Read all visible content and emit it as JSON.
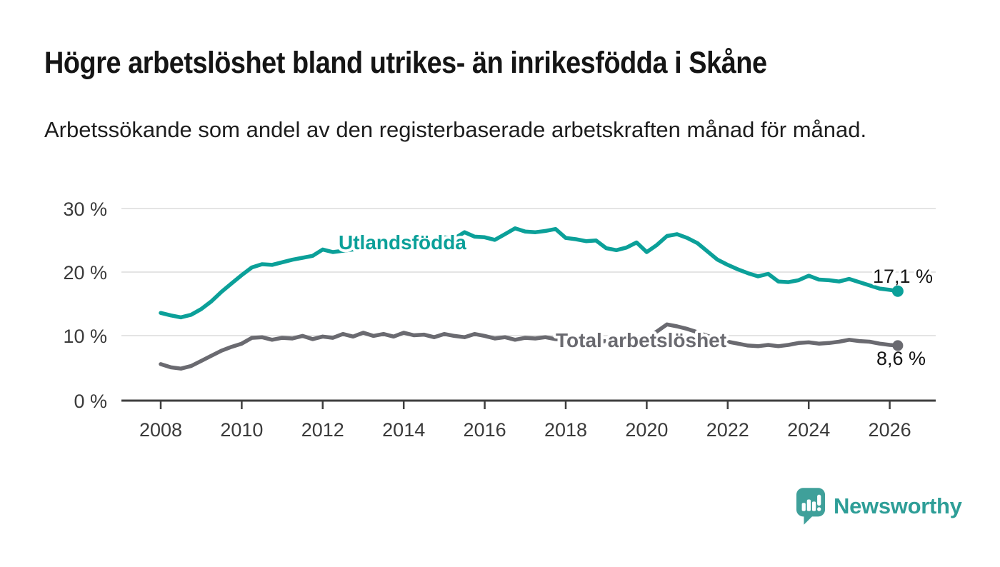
{
  "header": {
    "title": "Högre arbetslöshet bland utrikes- än inrikesfödda i Skåne",
    "subtitle": "Arbetssökande som andel av den registerbaserade arbetskraften månad för månad."
  },
  "chart_data": {
    "type": "line",
    "title": "Högre arbetslöshet bland utrikes- än inrikesfödda i Skåne",
    "subtitle": "Arbetssökande som andel av den registerbaserade arbetskraften månad för månad.",
    "xlabel": "",
    "ylabel": "",
    "xlim": [
      2007.0,
      2027.1
    ],
    "ylim": [
      0,
      31
    ],
    "grid": "horizontal",
    "x_ticks": [
      "2008",
      "2010",
      "2012",
      "2014",
      "2016",
      "2018",
      "2020",
      "2022",
      "2024",
      "2026"
    ],
    "y_ticks": [
      "30 %",
      "20 %",
      "10 %",
      "0 %"
    ],
    "y_tick_values": [
      30,
      20,
      10,
      0
    ],
    "x": [
      2008,
      2008.25,
      2008.5,
      2008.75,
      2009,
      2009.25,
      2009.5,
      2009.75,
      2010,
      2010.25,
      2010.5,
      2010.75,
      2011,
      2011.25,
      2011.5,
      2011.75,
      2012,
      2012.25,
      2012.5,
      2012.75,
      2013,
      2013.25,
      2013.5,
      2013.75,
      2014,
      2014.25,
      2014.5,
      2014.75,
      2015,
      2015.25,
      2015.5,
      2015.75,
      2016,
      2016.25,
      2016.5,
      2016.75,
      2017,
      2017.25,
      2017.5,
      2017.75,
      2018,
      2018.25,
      2018.5,
      2018.75,
      2019,
      2019.25,
      2019.5,
      2019.75,
      2020,
      2020.25,
      2020.5,
      2020.75,
      2021,
      2021.25,
      2021.5,
      2021.75,
      2022,
      2022.25,
      2022.5,
      2022.75,
      2023,
      2023.25,
      2023.5,
      2023.75,
      2024,
      2024.25,
      2024.5,
      2024.75,
      2025,
      2025.25,
      2025.5,
      2025.75,
      2026,
      2026.2
    ],
    "series": [
      {
        "name": "total",
        "label": "Total arbetslöshet",
        "color": "#6A6A70",
        "end_label": "8,6 %",
        "end_value": 8.6,
        "values": [
          5.7,
          5.2,
          5.0,
          5.4,
          6.2,
          7.0,
          7.8,
          8.4,
          8.9,
          9.8,
          9.9,
          9.5,
          9.8,
          9.7,
          10.1,
          9.6,
          10.0,
          9.8,
          10.4,
          10.0,
          10.6,
          10.1,
          10.4,
          10.0,
          10.6,
          10.2,
          10.3,
          9.9,
          10.4,
          10.1,
          9.9,
          10.4,
          10.1,
          9.7,
          9.9,
          9.5,
          9.8,
          9.7,
          9.9,
          9.6,
          9.5,
          9.3,
          9.4,
          9.2,
          9.3,
          9.1,
          9.3,
          9.6,
          9.8,
          10.8,
          11.9,
          11.6,
          11.2,
          10.7,
          10.1,
          9.6,
          9.2,
          8.9,
          8.6,
          8.5,
          8.7,
          8.5,
          8.7,
          9.0,
          9.1,
          8.9,
          9.0,
          9.2,
          9.5,
          9.3,
          9.2,
          8.9,
          8.7,
          8.6
        ]
      },
      {
        "name": "utlandsfodda",
        "label": "Utlandsfödda",
        "color": "#0BA099",
        "end_label": "17,1 %",
        "end_value": 17.1,
        "values": [
          13.7,
          13.3,
          13.0,
          13.4,
          14.3,
          15.5,
          17.0,
          18.3,
          19.6,
          20.8,
          21.3,
          21.2,
          21.6,
          22.0,
          22.3,
          22.6,
          23.6,
          23.2,
          23.4,
          23.6,
          24.1,
          23.8,
          24.2,
          24.4,
          24.8,
          24.5,
          24.9,
          25.1,
          25.5,
          25.3,
          26.3,
          25.6,
          25.5,
          25.1,
          26.0,
          26.9,
          26.4,
          26.3,
          26.5,
          26.8,
          25.4,
          25.2,
          24.9,
          25.0,
          23.8,
          23.5,
          23.9,
          24.7,
          23.2,
          24.3,
          25.7,
          26.0,
          25.4,
          24.6,
          23.3,
          22.0,
          21.2,
          20.5,
          19.9,
          19.4,
          19.8,
          18.6,
          18.5,
          18.8,
          19.5,
          18.9,
          18.8,
          18.6,
          19.0,
          18.5,
          18.0,
          17.5,
          17.3,
          17.1
        ]
      }
    ],
    "legend_position": "on-line"
  },
  "footer": {
    "brand": "Newsworthy",
    "brand_color": "#2E9E97"
  }
}
